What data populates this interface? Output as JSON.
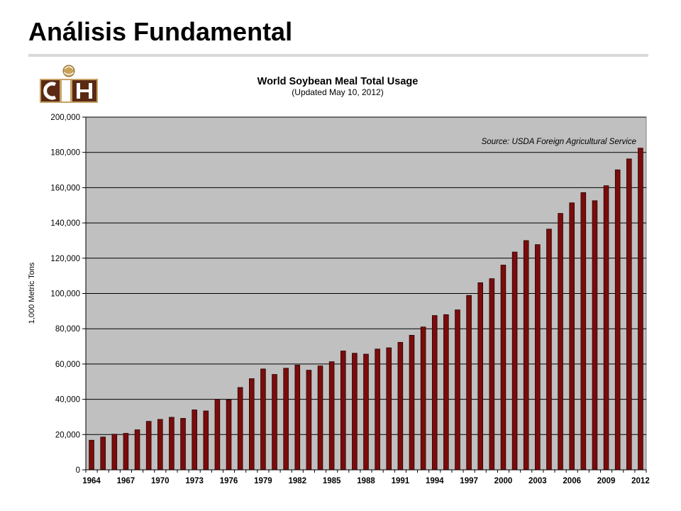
{
  "slide": {
    "title": "Análisis Fundamental"
  },
  "logo": {
    "text": "CIH"
  },
  "chart_data": {
    "type": "bar",
    "title": "World Soybean Meal Total Usage",
    "subtitle": "(Updated May 10, 2012)",
    "ylabel": "1,000 Metric Tons",
    "source": "Source: USDA Foreign Agricultural Service",
    "ylim": [
      0,
      200000
    ],
    "yticks": [
      0,
      20000,
      40000,
      60000,
      80000,
      100000,
      120000,
      140000,
      160000,
      180000,
      200000
    ],
    "ytick_labels": [
      "0",
      "20,000",
      "40,000",
      "60,000",
      "80,000",
      "100,000",
      "120,000",
      "140,000",
      "160,000",
      "180,000",
      "200,000"
    ],
    "xtick_labels": [
      "1964",
      "1967",
      "1970",
      "1973",
      "1976",
      "1979",
      "1982",
      "1985",
      "1988",
      "1991",
      "1994",
      "1997",
      "2000",
      "2003",
      "2006",
      "2009",
      "2012"
    ],
    "categories": [
      "1964",
      "1965",
      "1966",
      "1967",
      "1968",
      "1969",
      "1970",
      "1971",
      "1972",
      "1973",
      "1974",
      "1975",
      "1976",
      "1977",
      "1978",
      "1979",
      "1980",
      "1981",
      "1982",
      "1983",
      "1984",
      "1985",
      "1986",
      "1987",
      "1988",
      "1989",
      "1990",
      "1991",
      "1992",
      "1993",
      "1994",
      "1995",
      "1996",
      "1997",
      "1998",
      "1999",
      "2000",
      "2001",
      "2002",
      "2003",
      "2004",
      "2005",
      "2006",
      "2007",
      "2008",
      "2009",
      "2010",
      "2011",
      "2012"
    ],
    "values": [
      16800,
      18600,
      20200,
      20700,
      22700,
      27500,
      28600,
      29800,
      29200,
      34000,
      33400,
      40000,
      39700,
      46700,
      51700,
      57200,
      54100,
      57600,
      59400,
      56500,
      58900,
      61300,
      67400,
      66100,
      65600,
      68500,
      69200,
      72300,
      76300,
      81000,
      87500,
      88000,
      90700,
      98900,
      106100,
      108400,
      116100,
      123500,
      130000,
      127700,
      136500,
      145400,
      151400,
      157200,
      152600,
      161100,
      170100,
      176300,
      182400
    ],
    "grid": true,
    "colors": {
      "bar": "#7a0c0c",
      "bar_stroke": "#2a0000",
      "plot_bg": "#c0c0c0",
      "grid": "#000000"
    }
  }
}
